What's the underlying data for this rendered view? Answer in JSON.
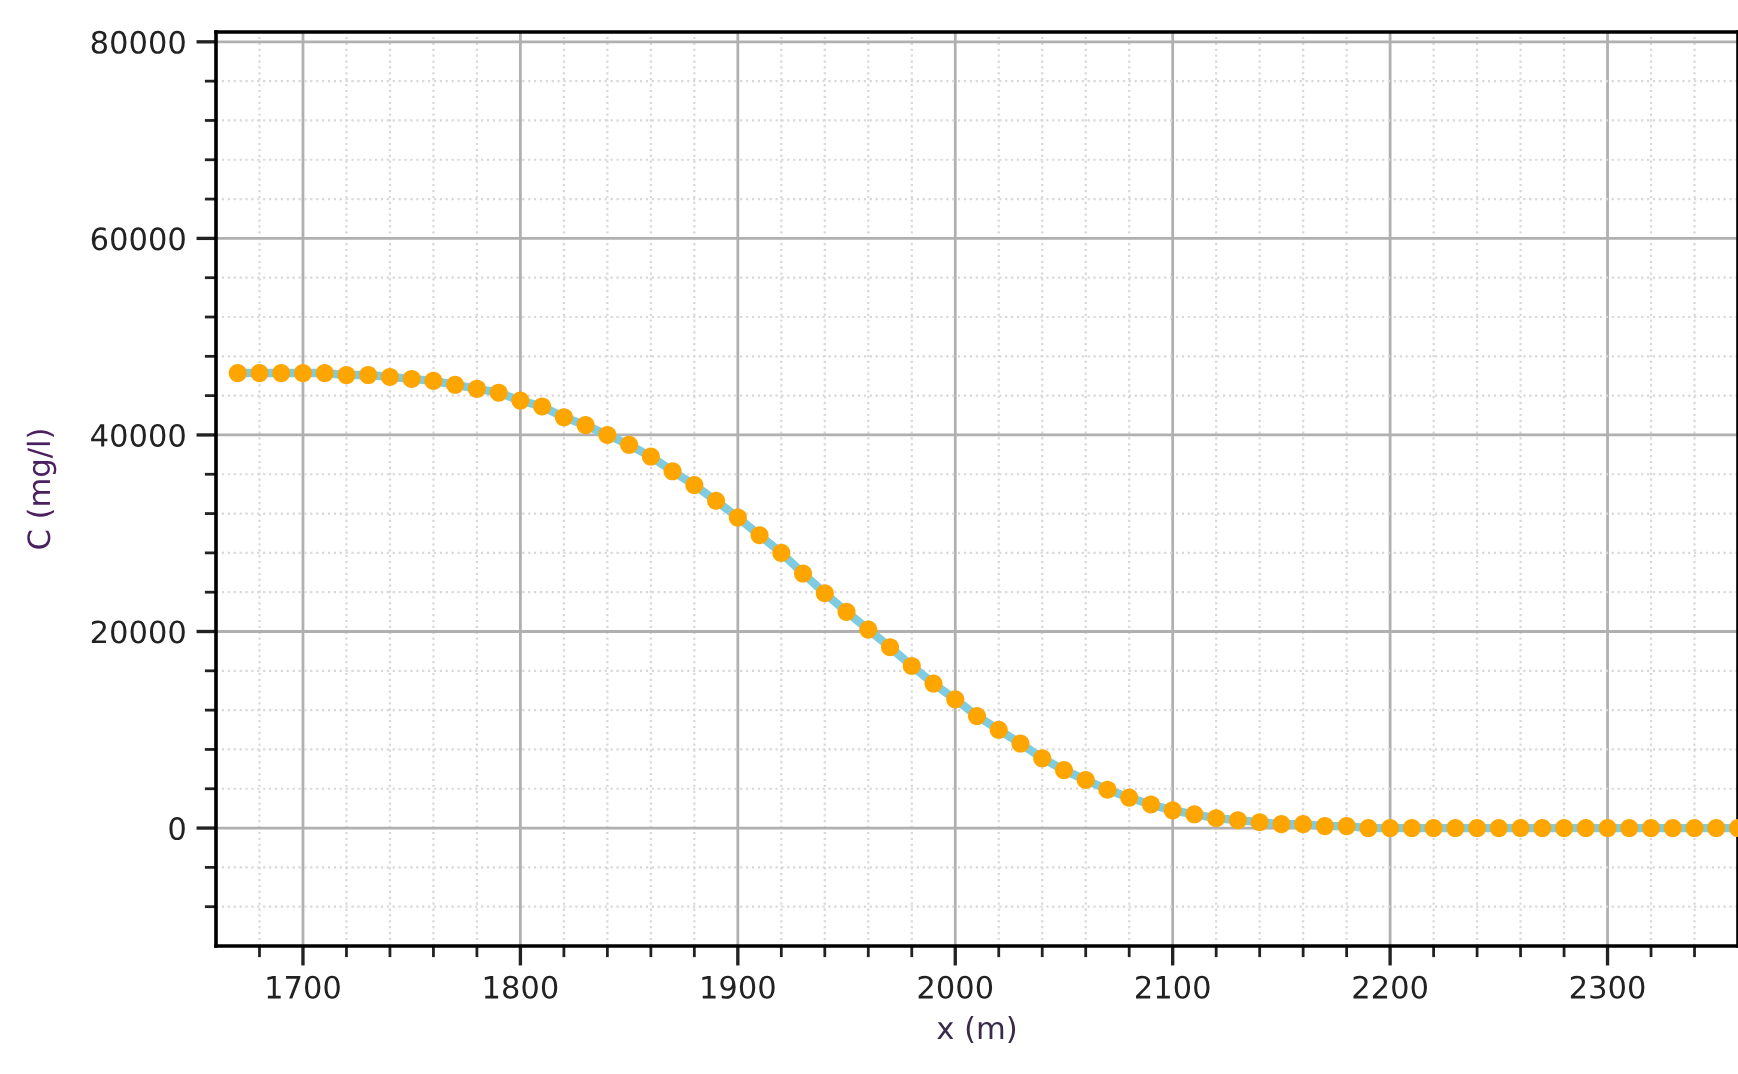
{
  "chart_data": {
    "type": "line",
    "xlabel": "x (m)",
    "ylabel": "C (mg/l)",
    "x": [
      1670,
      1680,
      1690,
      1700,
      1710,
      1720,
      1730,
      1740,
      1750,
      1760,
      1770,
      1780,
      1790,
      1800,
      1810,
      1820,
      1830,
      1840,
      1850,
      1860,
      1870,
      1880,
      1890,
      1900,
      1910,
      1920,
      1930,
      1940,
      1950,
      1960,
      1970,
      1980,
      1990,
      2000,
      2010,
      2020,
      2030,
      2040,
      2050,
      2060,
      2070,
      2080,
      2090,
      2100,
      2110,
      2120,
      2130,
      2140,
      2150,
      2160,
      2170,
      2180,
      2190,
      2200,
      2210,
      2220,
      2230,
      2240,
      2250,
      2260,
      2270,
      2280,
      2290,
      2300,
      2310,
      2320,
      2330,
      2340,
      2350,
      2360
    ],
    "series": [
      {
        "color": "#7fcbe0",
        "marker": "none",
        "line_style": "solid",
        "values": [
          46300,
          46300,
          46300,
          46300,
          46300,
          46100,
          46100,
          45900,
          45700,
          45500,
          45100,
          44700,
          44300,
          43500,
          42900,
          41800,
          41000,
          40000,
          39000,
          37800,
          36300,
          34900,
          33300,
          31600,
          29800,
          28000,
          25900,
          23900,
          22000,
          20200,
          18400,
          16500,
          14700,
          13100,
          11400,
          10000,
          8600,
          7100,
          5900,
          4900,
          3900,
          3100,
          2400,
          1800,
          1400,
          1000,
          800,
          600,
          400,
          400,
          200,
          200,
          0,
          0,
          0,
          0,
          0,
          0,
          0,
          0,
          0,
          0,
          0,
          0,
          0,
          0,
          0,
          0,
          0,
          0
        ]
      },
      {
        "type": "scatter",
        "color": "#ffa500",
        "marker": "circle",
        "values": [
          46300,
          46300,
          46300,
          46300,
          46300,
          46100,
          46100,
          45900,
          45700,
          45500,
          45100,
          44700,
          44300,
          43500,
          42900,
          41800,
          41000,
          40000,
          39000,
          37800,
          36300,
          34900,
          33300,
          31600,
          29800,
          28000,
          25900,
          23900,
          22000,
          20200,
          18400,
          16500,
          14700,
          13100,
          11400,
          10000,
          8600,
          7100,
          5900,
          4900,
          3900,
          3100,
          2400,
          1800,
          1400,
          1000,
          800,
          600,
          400,
          400,
          200,
          200,
          0,
          0,
          0,
          0,
          0,
          0,
          0,
          0,
          0,
          0,
          0,
          0,
          0,
          0,
          0,
          0,
          0,
          0
        ]
      }
    ],
    "grid": true,
    "xlim": [
      1660,
      2360
    ],
    "ylim": [
      -12000,
      81000
    ],
    "xticks": [
      {
        "value": 1680,
        "label": null
      },
      1700,
      {
        "value": 1720,
        "label": null
      },
      {
        "value": 1740,
        "label": null
      },
      {
        "value": 1760,
        "label": null
      },
      {
        "value": 1780,
        "label": null
      },
      1800,
      {
        "value": 1820,
        "label": null
      },
      {
        "value": 1840,
        "label": null
      },
      {
        "value": 1860,
        "label": null
      },
      {
        "value": 1880,
        "label": null
      },
      1900,
      {
        "value": 1920,
        "label": null
      },
      {
        "value": 1940,
        "label": null
      },
      {
        "value": 1960,
        "label": null
      },
      {
        "value": 1980,
        "label": null
      },
      2000,
      {
        "value": 2020,
        "label": null
      },
      {
        "value": 2040,
        "label": null
      },
      {
        "value": 2060,
        "label": null
      },
      {
        "value": 2080,
        "label": null
      },
      2100,
      {
        "value": 2120,
        "label": null
      },
      {
        "value": 2140,
        "label": null
      },
      {
        "value": 2160,
        "label": null
      },
      {
        "value": 2180,
        "label": null
      },
      2200,
      {
        "value": 2220,
        "label": null
      },
      {
        "value": 2240,
        "label": null
      },
      {
        "value": 2260,
        "label": null
      },
      {
        "value": 2280,
        "label": null
      },
      2300,
      {
        "value": 2320,
        "label": null
      },
      {
        "value": 2340,
        "label": null
      }
    ],
    "yticks": [
      {
        "value": -8000,
        "label": null
      },
      {
        "value": -4000,
        "label": null
      },
      0,
      {
        "value": 4000,
        "label": null
      },
      {
        "value": 8000,
        "label": null
      },
      {
        "value": 12000,
        "label": null
      },
      {
        "value": 16000,
        "label": null
      },
      20000,
      {
        "value": 24000,
        "label": null
      },
      {
        "value": 28000,
        "label": null
      },
      {
        "value": 32000,
        "label": null
      },
      {
        "value": 36000,
        "label": null
      },
      40000,
      {
        "value": 44000,
        "label": null
      },
      {
        "value": 48000,
        "label": null
      },
      {
        "value": 52000,
        "label": null
      },
      {
        "value": 56000,
        "label": null
      },
      60000,
      {
        "value": 64000,
        "label": null
      },
      {
        "value": 68000,
        "label": null
      },
      {
        "value": 72000,
        "label": null
      },
      {
        "value": 76000,
        "label": null
      },
      80000
    ]
  }
}
